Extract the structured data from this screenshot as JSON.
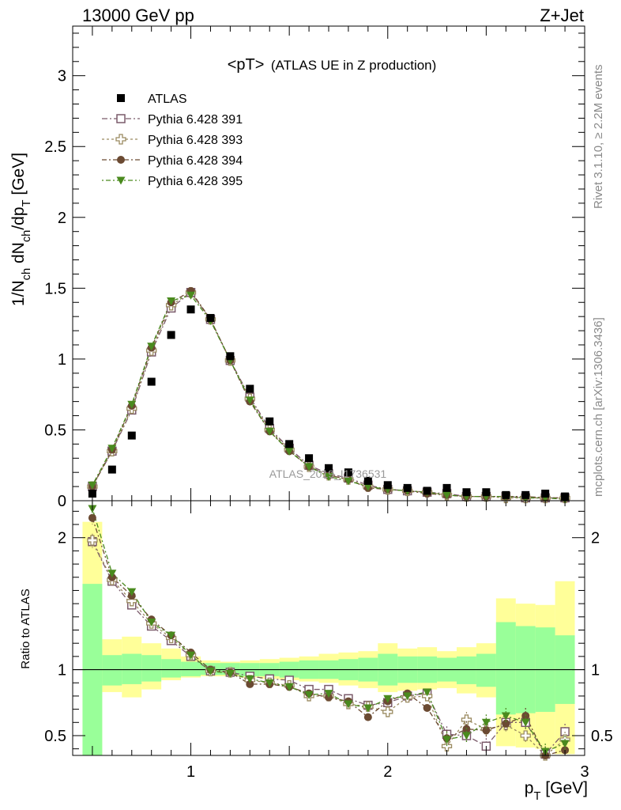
{
  "header": {
    "energy_label": "13000 GeV pp",
    "process_label": "Z+Jet",
    "plot_title": "<pT>",
    "plot_subtitle": "(ATLAS UE in Z production)",
    "side_label_rivet": "Rivet 3.1.10, ≥ 2.2M events",
    "side_label_source": "mcplots.cern.ch [arXiv:1306.3436]",
    "watermark": "ATLAS_2019_I1736531"
  },
  "chart_data": [
    {
      "type": "scatter",
      "xlabel": "p_T [GeV]",
      "ylabel": "1/N_ch dN_ch/dp_T [GeV]",
      "xlim": [
        0.4,
        3.0
      ],
      "ylim": [
        0,
        3.35
      ],
      "yticks": [
        0,
        0.5,
        1,
        1.5,
        2,
        2.5,
        3
      ],
      "yticklabels": [
        "0",
        "0.5",
        "1",
        "1.5",
        "2",
        "2.5",
        "3"
      ],
      "x": [
        0.5,
        0.6,
        0.7,
        0.8,
        0.9,
        1.0,
        1.1,
        1.2,
        1.3,
        1.4,
        1.5,
        1.6,
        1.7,
        1.8,
        1.9,
        2.0,
        2.1,
        2.2,
        2.3,
        2.4,
        2.5,
        2.6,
        2.7,
        2.8,
        2.9
      ],
      "legend_placement": "top-left",
      "series": [
        {
          "name": "ATLAS",
          "marker": "filled-square",
          "color": "#000000",
          "values": [
            0.05,
            0.22,
            0.46,
            0.84,
            1.17,
            1.35,
            1.29,
            1.02,
            0.79,
            0.56,
            0.4,
            0.3,
            0.23,
            0.2,
            0.14,
            0.11,
            0.09,
            0.07,
            0.09,
            0.06,
            0.06,
            0.04,
            0.04,
            0.05,
            0.03
          ]
        },
        {
          "name": "Pythia 6.428 391",
          "marker": "open-square",
          "color": "#7a5a6a",
          "values": [
            0.1,
            0.35,
            0.64,
            1.05,
            1.36,
            1.47,
            1.28,
            0.99,
            0.73,
            0.51,
            0.37,
            0.25,
            0.19,
            0.16,
            0.11,
            0.08,
            0.07,
            0.06,
            0.05,
            0.03,
            0.03,
            0.03,
            0.02,
            0.02,
            0.02
          ]
        },
        {
          "name": "Pythia 6.428 393",
          "marker": "open-cross",
          "color": "#9a8a60",
          "values": [
            0.1,
            0.35,
            0.65,
            1.06,
            1.38,
            1.47,
            1.28,
            0.99,
            0.72,
            0.5,
            0.36,
            0.24,
            0.18,
            0.15,
            0.1,
            0.08,
            0.07,
            0.06,
            0.04,
            0.03,
            0.03,
            0.02,
            0.02,
            0.02,
            0.02
          ]
        },
        {
          "name": "Pythia 6.428 394",
          "marker": "filled-circle",
          "color": "#6b4a32",
          "values": [
            0.1,
            0.36,
            0.67,
            1.08,
            1.4,
            1.48,
            1.28,
            0.99,
            0.7,
            0.49,
            0.35,
            0.24,
            0.18,
            0.15,
            0.09,
            0.08,
            0.07,
            0.05,
            0.04,
            0.03,
            0.03,
            0.03,
            0.03,
            0.02,
            0.02
          ]
        },
        {
          "name": "Pythia 6.428 395",
          "marker": "filled-triangle-down",
          "color": "#4a8a1e",
          "values": [
            0.11,
            0.37,
            0.68,
            1.09,
            1.41,
            1.45,
            1.27,
            0.99,
            0.71,
            0.49,
            0.35,
            0.24,
            0.17,
            0.14,
            0.1,
            0.08,
            0.07,
            0.06,
            0.04,
            0.03,
            0.03,
            0.03,
            0.02,
            0.02,
            0.01
          ]
        }
      ]
    },
    {
      "type": "scatter",
      "xlabel": "p_T [GeV]",
      "ylabel": "Ratio to ATLAS",
      "xlim": [
        0.4,
        3.0
      ],
      "ylim": [
        0.35,
        2.28
      ],
      "yticks": [
        0.5,
        1,
        2
      ],
      "yticklabels": [
        "0.5",
        "1",
        "2"
      ],
      "xticks": [
        1,
        2,
        3
      ],
      "xticklabels": [
        "1",
        "2",
        "3"
      ],
      "x": [
        0.5,
        0.6,
        0.7,
        0.8,
        0.9,
        1.0,
        1.1,
        1.2,
        1.3,
        1.4,
        1.5,
        1.6,
        1.7,
        1.8,
        1.9,
        2.0,
        2.1,
        2.2,
        2.3,
        2.4,
        2.5,
        2.6,
        2.7,
        2.8,
        2.9
      ],
      "bin_edges": [
        0.45,
        0.55,
        0.65,
        0.75,
        0.85,
        0.95,
        1.05,
        1.15,
        1.25,
        1.35,
        1.45,
        1.55,
        1.65,
        1.75,
        1.85,
        1.95,
        2.05,
        2.15,
        2.25,
        2.35,
        2.45,
        2.55,
        2.65,
        2.75,
        2.85,
        2.95
      ],
      "band_colors": {
        "outer": "#ffff99",
        "inner": "#99ff99"
      },
      "band_outer": [
        [
          0.35,
          2.12
        ],
        [
          0.83,
          1.23
        ],
        [
          0.79,
          1.25
        ],
        [
          0.85,
          1.2
        ],
        [
          0.92,
          1.16
        ],
        [
          0.94,
          1.1
        ],
        [
          0.95,
          1.07
        ],
        [
          0.95,
          1.06
        ],
        [
          0.94,
          1.07
        ],
        [
          0.93,
          1.08
        ],
        [
          0.92,
          1.09
        ],
        [
          0.91,
          1.1
        ],
        [
          0.9,
          1.12
        ],
        [
          0.88,
          1.13
        ],
        [
          0.86,
          1.14
        ],
        [
          0.83,
          1.2
        ],
        [
          0.84,
          1.16
        ],
        [
          0.85,
          1.17
        ],
        [
          0.86,
          1.14
        ],
        [
          0.82,
          1.17
        ],
        [
          0.79,
          1.2
        ],
        [
          0.42,
          1.54
        ],
        [
          0.41,
          1.5
        ],
        [
          0.4,
          1.49
        ],
        [
          0.36,
          1.67
        ]
      ],
      "band_inner": [
        [
          0.35,
          1.65
        ],
        [
          0.88,
          1.11
        ],
        [
          0.89,
          1.12
        ],
        [
          0.91,
          1.11
        ],
        [
          0.94,
          1.08
        ],
        [
          0.95,
          1.06
        ],
        [
          0.96,
          1.05
        ],
        [
          0.96,
          1.05
        ],
        [
          0.95,
          1.05
        ],
        [
          0.95,
          1.05
        ],
        [
          0.94,
          1.06
        ],
        [
          0.93,
          1.07
        ],
        [
          0.93,
          1.07
        ],
        [
          0.92,
          1.08
        ],
        [
          0.91,
          1.09
        ],
        [
          0.88,
          1.12
        ],
        [
          0.9,
          1.1
        ],
        [
          0.9,
          1.1
        ],
        [
          0.91,
          1.09
        ],
        [
          0.89,
          1.1
        ],
        [
          0.87,
          1.12
        ],
        [
          0.66,
          1.36
        ],
        [
          0.67,
          1.33
        ],
        [
          0.68,
          1.32
        ],
        [
          0.74,
          1.26
        ]
      ],
      "reference_line": 1,
      "series": [
        {
          "name": "Pythia 6.428 391",
          "marker": "open-square",
          "color": "#7a5a6a",
          "values": [
            1.97,
            1.67,
            1.49,
            1.33,
            1.22,
            1.1,
            0.99,
            0.98,
            0.95,
            0.93,
            0.92,
            0.85,
            0.85,
            0.78,
            0.73,
            0.75,
            0.8,
            0.82,
            0.51,
            0.5,
            0.42,
            0.6,
            0.6,
            0.36,
            0.53
          ]
        },
        {
          "name": "Pythia 6.428 393",
          "marker": "open-cross",
          "color": "#9a8a60",
          "values": [
            1.98,
            1.68,
            1.52,
            1.35,
            1.24,
            1.11,
            0.99,
            0.98,
            0.92,
            0.9,
            0.88,
            0.8,
            0.8,
            0.74,
            0.72,
            0.68,
            0.79,
            0.8,
            0.42,
            0.62,
            0.55,
            0.58,
            0.5,
            0.35,
            0.47
          ]
        },
        {
          "name": "Pythia 6.428 394",
          "marker": "filled-circle",
          "color": "#6b4a32",
          "values": [
            2.15,
            1.7,
            1.56,
            1.38,
            1.26,
            1.13,
            1.0,
            0.98,
            0.89,
            0.89,
            0.87,
            0.82,
            0.79,
            0.76,
            0.64,
            0.76,
            0.82,
            0.71,
            0.48,
            0.55,
            0.54,
            0.59,
            0.65,
            0.35,
            0.39
          ]
        },
        {
          "name": "Pythia 6.428 395",
          "marker": "filled-triangle-down",
          "color": "#4a8a1e",
          "values": [
            2.22,
            1.73,
            1.59,
            1.36,
            1.26,
            1.11,
            0.99,
            0.97,
            0.93,
            0.9,
            0.87,
            0.81,
            0.82,
            0.74,
            0.71,
            0.78,
            0.8,
            0.83,
            0.47,
            0.5,
            0.6,
            0.65,
            0.6,
            0.38,
            0.44
          ]
        }
      ]
    }
  ]
}
